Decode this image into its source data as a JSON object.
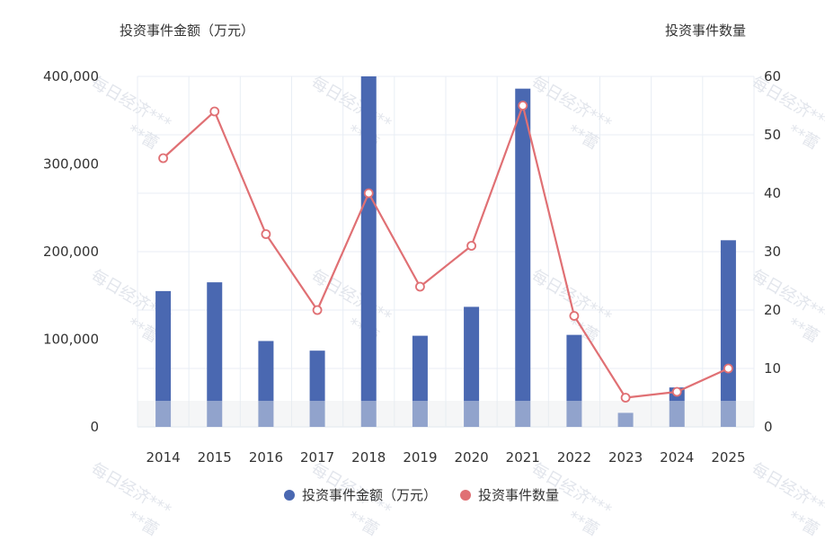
{
  "chart_data": {
    "type": "bar",
    "categories": [
      "2014",
      "2015",
      "2016",
      "2017",
      "2018",
      "2019",
      "2020",
      "2021",
      "2022",
      "2023",
      "2024",
      "2025"
    ],
    "series": [
      {
        "name": "投资事件金额（万元）",
        "type": "bar",
        "axis": "left",
        "color": "#4a68b1",
        "values": [
          155000,
          165000,
          98000,
          87000,
          400000,
          104000,
          137000,
          386000,
          105000,
          16000,
          45000,
          213000
        ]
      },
      {
        "name": "投资事件数量",
        "type": "line",
        "axis": "right",
        "color": "#e07074",
        "values": [
          46,
          54,
          33,
          20,
          40,
          24,
          31,
          55,
          19,
          5,
          6,
          10
        ]
      }
    ],
    "ylabel_left": "投资事件金额（万元）",
    "ylabel_right": "投资事件数量",
    "ylim_left": [
      0,
      400000
    ],
    "ylim_right": [
      0,
      60
    ],
    "yticks_left": [
      "0",
      "100,000",
      "200,000",
      "300,000",
      "400,000"
    ],
    "yticks_right": [
      "0",
      "10",
      "20",
      "30",
      "40",
      "50",
      "60"
    ],
    "grid": true,
    "legend_position": "bottom-center"
  },
  "watermark": {
    "line1": "每日经济***",
    "line2": "**蕾"
  }
}
